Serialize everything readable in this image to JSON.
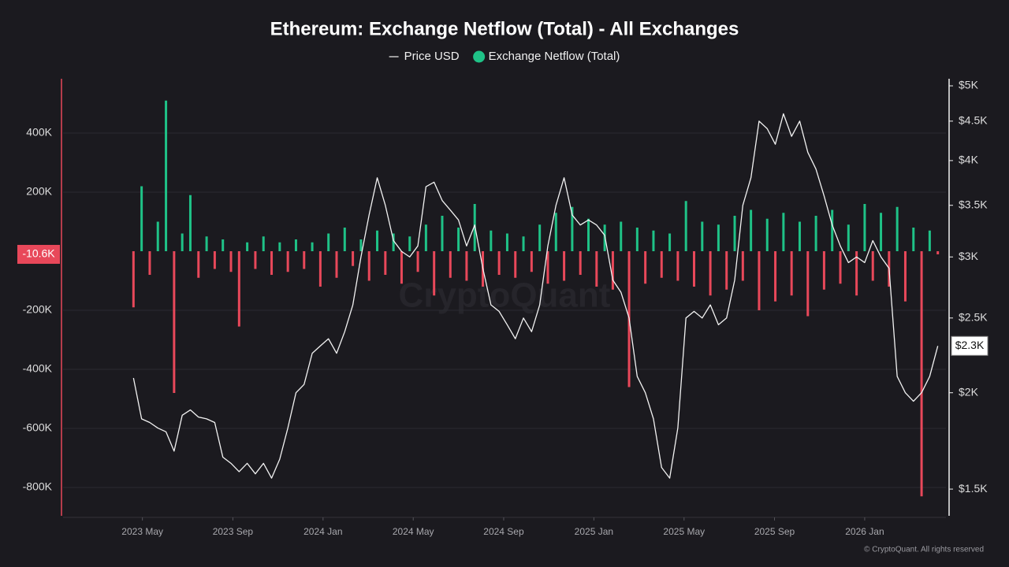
{
  "chart_data": {
    "type": "combo",
    "title": "Ethereum: Exchange Netflow (Total) - All Exchanges",
    "watermark": "CryptoQuant",
    "copyright": "© CryptoQuant. All rights reserved",
    "x": [
      2023.3,
      2023.33,
      2023.36,
      2023.39,
      2023.42,
      2023.45,
      2023.48,
      2023.51,
      2023.54,
      2023.57,
      2023.6,
      2023.63,
      2023.66,
      2023.69,
      2023.72,
      2023.75,
      2023.78,
      2023.81,
      2023.84,
      2023.87,
      2023.9,
      2023.93,
      2023.96,
      2023.99,
      2024.02,
      2024.05,
      2024.08,
      2024.11,
      2024.14,
      2024.17,
      2024.2,
      2024.23,
      2024.26,
      2024.29,
      2024.32,
      2024.35,
      2024.38,
      2024.41,
      2024.44,
      2024.47,
      2024.5,
      2024.53,
      2024.56,
      2024.59,
      2024.62,
      2024.65,
      2024.68,
      2024.71,
      2024.74,
      2024.77,
      2024.8,
      2024.83,
      2024.86,
      2024.89,
      2024.92,
      2024.95,
      2024.98,
      2025.01,
      2025.04,
      2025.07,
      2025.1,
      2025.13,
      2025.16,
      2025.19,
      2025.22,
      2025.25,
      2025.28,
      2025.31,
      2025.34,
      2025.37,
      2025.4,
      2025.43,
      2025.46,
      2025.49,
      2025.52,
      2025.55,
      2025.58,
      2025.61,
      2025.64,
      2025.67,
      2025.7,
      2025.73,
      2025.76,
      2025.79,
      2025.82,
      2025.85,
      2025.88,
      2025.91,
      2025.94,
      2025.97,
      2026.0,
      2026.03,
      2026.06,
      2026.09,
      2026.12,
      2026.15,
      2026.18,
      2026.21,
      2026.24,
      2026.27
    ],
    "xlim": [
      2023.04,
      2026.3
    ],
    "xticks": [
      {
        "value": 2023.333,
        "label": "2023 May"
      },
      {
        "value": 2023.667,
        "label": "2023 Sep"
      },
      {
        "value": 2024.0,
        "label": "2024 Jan"
      },
      {
        "value": 2024.333,
        "label": "2024 May"
      },
      {
        "value": 2024.667,
        "label": "2024 Sep"
      },
      {
        "value": 2025.0,
        "label": "2025 Jan"
      },
      {
        "value": 2025.333,
        "label": "2025 May"
      },
      {
        "value": 2025.667,
        "label": "2025 Sep"
      },
      {
        "value": 2026.0,
        "label": "2026 Jan"
      }
    ],
    "ylim": [
      -896000,
      584000
    ],
    "yticks": [
      {
        "value": 400000,
        "label": "400K"
      },
      {
        "value": 200000,
        "label": "200K"
      },
      {
        "value": -200000,
        "label": "-200K"
      },
      {
        "value": -400000,
        "label": "-400K"
      },
      {
        "value": -600000,
        "label": "-600K"
      },
      {
        "value": -800000,
        "label": "-800K"
      }
    ],
    "y2lim": [
      1385,
      5107
    ],
    "y2_log": true,
    "y2ticks": [
      {
        "value": 5000,
        "label": "$5K"
      },
      {
        "value": 4500,
        "label": "$4.5K"
      },
      {
        "value": 4000,
        "label": "$4K"
      },
      {
        "value": 3500,
        "label": "$3.5K"
      },
      {
        "value": 3000,
        "label": "$3K"
      },
      {
        "value": 2500,
        "label": "$2.5K"
      },
      {
        "value": 2000,
        "label": "$2K"
      },
      {
        "value": 1500,
        "label": "$1.5K"
      }
    ],
    "grid": true,
    "series": [
      {
        "name": "Price USD",
        "type": "line",
        "axis": "y2",
        "color": "#f2f2f2",
        "values": [
          2090,
          1850,
          1830,
          1800,
          1780,
          1680,
          1870,
          1900,
          1860,
          1850,
          1830,
          1650,
          1620,
          1580,
          1620,
          1570,
          1620,
          1550,
          1640,
          1800,
          2000,
          2050,
          2250,
          2300,
          2350,
          2250,
          2400,
          2600,
          3000,
          3400,
          3800,
          3500,
          3150,
          3050,
          3000,
          3100,
          3700,
          3750,
          3550,
          3450,
          3350,
          3100,
          3300,
          2900,
          2600,
          2550,
          2450,
          2350,
          2500,
          2400,
          2600,
          3100,
          3500,
          3800,
          3400,
          3300,
          3350,
          3300,
          3200,
          2800,
          2700,
          2500,
          2100,
          2000,
          1850,
          1600,
          1550,
          1800,
          2500,
          2550,
          2500,
          2600,
          2450,
          2500,
          2800,
          3500,
          3800,
          4500,
          4400,
          4200,
          4600,
          4300,
          4500,
          4100,
          3900,
          3600,
          3300,
          3100,
          2950,
          3000,
          2950,
          3150,
          3000,
          2900,
          2100,
          2000,
          1950,
          2000,
          2100,
          2300
        ]
      },
      {
        "name": "Exchange Netflow (Total)",
        "type": "bar",
        "axis": "y",
        "color": "#1fc287",
        "negative_color": "#e8485a",
        "values": [
          -190000,
          220000,
          -80000,
          100000,
          510000,
          -480000,
          60000,
          190000,
          -90000,
          50000,
          -60000,
          40000,
          -70000,
          -255000,
          30000,
          -60000,
          50000,
          -80000,
          30000,
          -70000,
          40000,
          -60000,
          30000,
          -120000,
          60000,
          -90000,
          80000,
          -50000,
          40000,
          -100000,
          70000,
          -80000,
          60000,
          -110000,
          50000,
          -70000,
          90000,
          -150000,
          120000,
          -90000,
          80000,
          -100000,
          160000,
          -120000,
          70000,
          -80000,
          60000,
          -90000,
          50000,
          -70000,
          90000,
          -110000,
          130000,
          -100000,
          150000,
          -80000,
          110000,
          -120000,
          90000,
          -130000,
          100000,
          -460000,
          80000,
          -110000,
          70000,
          -90000,
          60000,
          -100000,
          170000,
          -120000,
          100000,
          -150000,
          90000,
          -130000,
          120000,
          -100000,
          140000,
          -200000,
          110000,
          -170000,
          130000,
          -150000,
          100000,
          -220000,
          120000,
          -130000,
          140000,
          -110000,
          90000,
          -150000,
          160000,
          -100000,
          130000,
          -120000,
          150000,
          -170000,
          80000,
          -830000,
          70000,
          -10600
        ]
      }
    ],
    "annotations": [
      {
        "axis": "y",
        "value": -10600,
        "label": "-10.6K",
        "color": "#e8485a"
      },
      {
        "axis": "y2",
        "value": 2300,
        "label": "$2.3K",
        "color": "#ffffff"
      }
    ]
  }
}
